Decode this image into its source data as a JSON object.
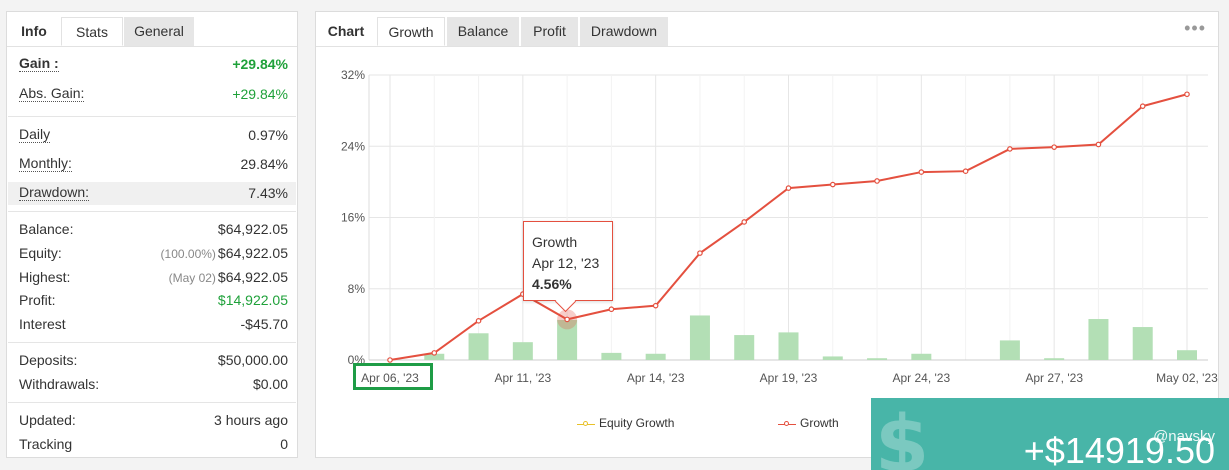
{
  "left_panel": {
    "tabs": [
      "Info",
      "Stats",
      "General"
    ],
    "rows": {
      "gain": {
        "label": "Gain :",
        "value": "+29.84%"
      },
      "abs_gain": {
        "label": "Abs. Gain:",
        "value": "+29.84%"
      },
      "daily": {
        "label": "Daily",
        "value": "0.97%"
      },
      "monthly": {
        "label": "Monthly:",
        "value": "29.84%"
      },
      "drawdown": {
        "label": "Drawdown:",
        "value": "7.43%"
      },
      "balance": {
        "label": "Balance:",
        "value": "$64,922.05"
      },
      "equity": {
        "label": "Equity:",
        "sub": "(100.00%)",
        "value": "$64,922.05"
      },
      "highest": {
        "label": "Highest:",
        "sub": "(May 02)",
        "value": "$64,922.05"
      },
      "profit": {
        "label": "Profit:",
        "value": "$14,922.05"
      },
      "interest": {
        "label": "Interest",
        "value": "-$45.70"
      },
      "deposits": {
        "label": "Deposits:",
        "value": "$50,000.00"
      },
      "withdrawals": {
        "label": "Withdrawals:",
        "value": "$0.00"
      },
      "updated": {
        "label": "Updated:",
        "value": "3 hours ago"
      },
      "tracking": {
        "label": "Tracking",
        "value": "0"
      }
    }
  },
  "right_panel": {
    "tabs": [
      "Chart",
      "Growth",
      "Balance",
      "Profit",
      "Drawdown"
    ],
    "menu_icon": "more-dots-icon",
    "tooltip": {
      "title": "Growth",
      "date": "Apr 12, '23",
      "value": "4.56%"
    },
    "legend": [
      "Equity Growth",
      "Growth"
    ]
  },
  "banner": {
    "amount": "+$14919.50",
    "handle": "@navsky",
    "icon": "dollar-icon"
  },
  "colors": {
    "growth_line": "#e4503f",
    "equity_line": "#e8c12a",
    "bars": "#b3dfb5",
    "positive": "#1fa13a",
    "banner": "#48b5a8",
    "highlight_box": "#1e9c46"
  },
  "chart_data": {
    "type": "line",
    "y_ticks": [
      "0%",
      "8%",
      "16%",
      "24%",
      "32%"
    ],
    "ylim": [
      0,
      32
    ],
    "x_tick_labels": [
      "Apr 06, '23",
      "Apr 11, '23",
      "Apr 14, '23",
      "Apr 19, '23",
      "Apr 24, '23",
      "Apr 27, '23",
      "May 02, '23"
    ],
    "series": [
      {
        "name": "Growth",
        "values": [
          0,
          0.8,
          4.4,
          7.4,
          4.56,
          5.7,
          6.1,
          12.0,
          15.5,
          19.3,
          19.7,
          20.1,
          21.1,
          21.2,
          23.7,
          23.9,
          24.2,
          28.5,
          29.84
        ]
      },
      {
        "name": "Equity Growth",
        "values": [
          0,
          0.8,
          4.4,
          7.4,
          4.56,
          5.7,
          6.1,
          12.0,
          15.5,
          19.3,
          19.7,
          20.1,
          21.1,
          21.2,
          23.7,
          23.9,
          24.2,
          28.5,
          29.84
        ]
      }
    ],
    "daily_bars": [
      0,
      0.7,
      3.0,
      2.0,
      4.5,
      0.8,
      0.7,
      5.0,
      2.8,
      3.1,
      0.4,
      0.2,
      0.7,
      0,
      2.2,
      0.2,
      4.6,
      3.7,
      1.1
    ],
    "x_tick_index": [
      0,
      3,
      6,
      9,
      12,
      15,
      18
    ],
    "grid": true,
    "legend_position": "bottom-center"
  }
}
